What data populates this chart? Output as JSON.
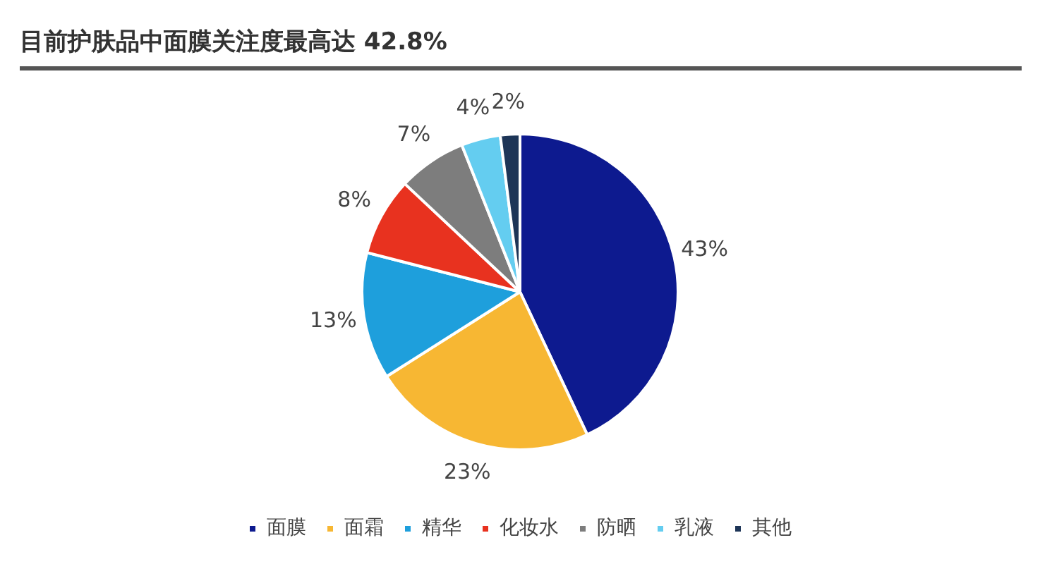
{
  "chart_data": {
    "type": "pie",
    "title": "目前护肤品中面膜关注度最高达 42.8%",
    "categories": [
      "面膜",
      "面霜",
      "精华",
      "化妆水",
      "防晒",
      "乳液",
      "其他"
    ],
    "values": [
      43,
      23,
      13,
      8,
      7,
      4,
      2
    ],
    "colors": [
      "#0d1a8f",
      "#f7b733",
      "#1e9fdc",
      "#e8321f",
      "#7d7d7d",
      "#64cdf0",
      "#1d3557"
    ],
    "value_labels": [
      "43%",
      "23%",
      "13%",
      "8%",
      "7%",
      "4%",
      "2%"
    ],
    "legend": "bottom"
  }
}
